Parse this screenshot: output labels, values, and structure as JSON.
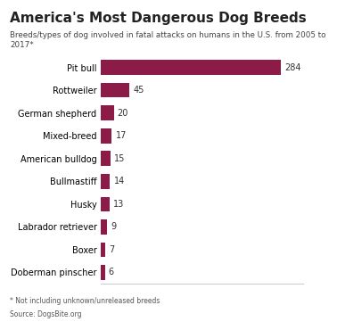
{
  "chart_data": {
    "type": "bar",
    "orientation": "horizontal",
    "title": "America's Most Dangerous Dog Breeds",
    "subtitle": "Breeds/types of dog involved in fatal attacks on humans in the U.S. from 2005 to 2017*",
    "categories": [
      "Pit bull",
      "Rottweiler",
      "German shepherd",
      "Mixed-breed",
      "American bulldog",
      "Bullmastiff",
      "Husky",
      "Labrador retriever",
      "Boxer",
      "Doberman pinscher"
    ],
    "values": [
      284,
      45,
      20,
      17,
      15,
      14,
      13,
      9,
      7,
      6
    ],
    "color": "#8c1c47",
    "xlim": [
      0,
      320
    ],
    "data_labels": true,
    "tick_labels": "y",
    "grid": false,
    "footnote": "* Not including unknown/unreleased breeds",
    "source": "Source: DogsBite.org"
  }
}
